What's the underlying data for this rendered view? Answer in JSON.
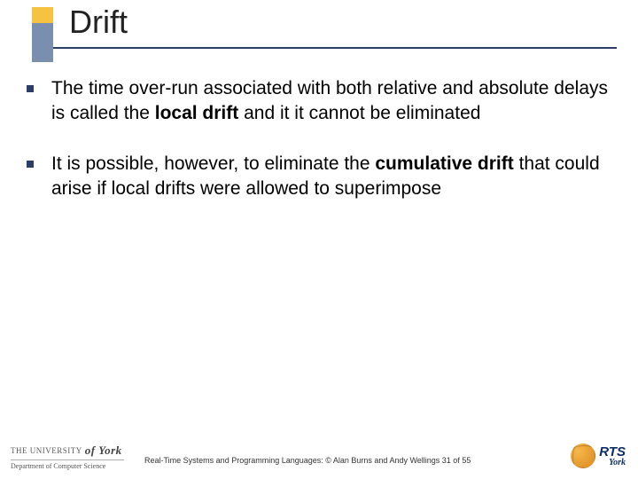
{
  "colors": {
    "accent_yellow": "#f5c242",
    "accent_blue_gray": "#7a8fb0",
    "rule_dark": "#2c3e66",
    "bullet": "#2c3e66",
    "background": "#ffffff",
    "text": "#000000",
    "rts_blue": "#0a2e66"
  },
  "slide": {
    "title": "Drift",
    "bullets": [
      {
        "pre": "The time over-run associated with both relative and absolute delays is called the ",
        "bold": "local drift",
        "post": " and it it cannot be eliminated"
      },
      {
        "pre": "It is possible, however, to eliminate the ",
        "bold": "cumulative drift",
        "post": "  that could arise if local drifts were allowed to superimpose"
      }
    ]
  },
  "footer": {
    "text": "Real-Time Systems and Programming Languages: © Alan Burns and Andy Wellings 31 of 55",
    "left_logo": {
      "line1_small": "THE UNIVERSITY",
      "line1_italic": "of York",
      "dept": "Department of Computer Science"
    },
    "right_logo": {
      "main": "RTS",
      "sub": "York"
    }
  }
}
